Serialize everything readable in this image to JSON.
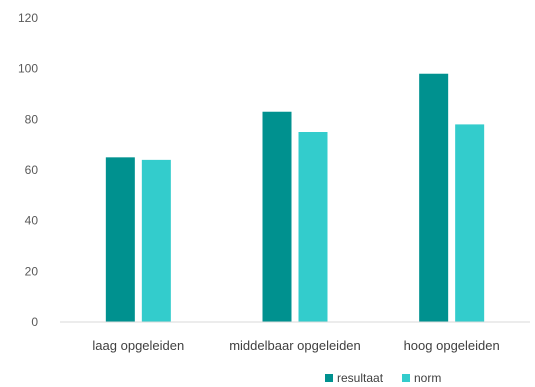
{
  "chart_data": {
    "type": "bar",
    "categories": [
      "laag opgeleiden",
      "middelbaar opgeleiden",
      "hoog opgeleiden"
    ],
    "series": [
      {
        "name": "resultaat",
        "values": [
          65,
          83,
          98
        ],
        "color": "#00918f"
      },
      {
        "name": "norm",
        "values": [
          64,
          75,
          78
        ],
        "color": "#33cccc"
      }
    ],
    "ylim": [
      0,
      120
    ],
    "yticks": [
      0,
      20,
      40,
      60,
      80,
      100,
      120
    ],
    "grid": false,
    "legend_position": "bottom-right"
  }
}
